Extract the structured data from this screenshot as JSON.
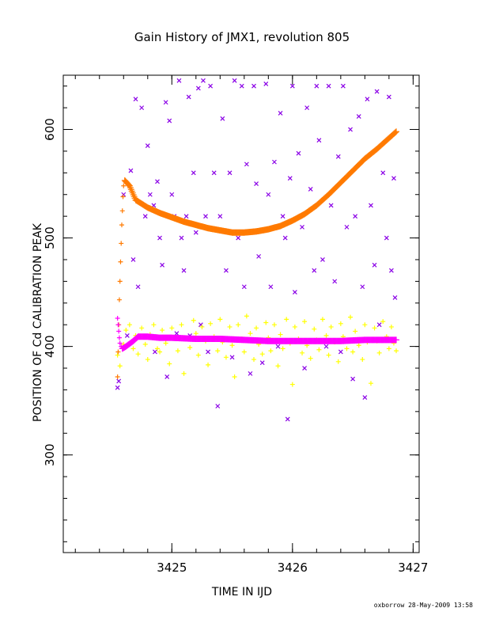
{
  "chart_data": {
    "type": "scatter",
    "title": "Gain History of JMX1, revolution 805",
    "xlabel": "TIME IN IJD",
    "ylabel": "POSITION OF Cd CALIBRATION PEAK",
    "xlim": [
      3424.1,
      3427.05
    ],
    "ylim": [
      210,
      650
    ],
    "x_ticks": [
      3425,
      3426,
      3427
    ],
    "y_ticks": [
      300,
      400,
      500,
      600
    ],
    "x_minor_step": 0.2,
    "y_minor_step": 20,
    "grid": false,
    "colors": {
      "purple": "#8a00e6",
      "yellow": "#ffff00",
      "orange": "#ff7a00",
      "magenta": "#ff00ff"
    },
    "series": [
      {
        "marker": "x",
        "color": "purple",
        "values": [
          [
            3424.55,
            362
          ],
          [
            3424.56,
            368
          ],
          [
            3424.6,
            540
          ],
          [
            3424.63,
            410
          ],
          [
            3424.66,
            562
          ],
          [
            3424.68,
            480
          ],
          [
            3424.7,
            628
          ],
          [
            3424.72,
            455
          ],
          [
            3424.75,
            620
          ],
          [
            3424.78,
            520
          ],
          [
            3424.8,
            585
          ],
          [
            3424.82,
            540
          ],
          [
            3424.85,
            530
          ],
          [
            3424.86,
            395
          ],
          [
            3424.88,
            552
          ],
          [
            3424.9,
            500
          ],
          [
            3424.92,
            475
          ],
          [
            3424.95,
            625
          ],
          [
            3424.96,
            372
          ],
          [
            3424.98,
            608
          ],
          [
            3425.0,
            540
          ],
          [
            3425.02,
            520
          ],
          [
            3425.04,
            412
          ],
          [
            3425.06,
            645
          ],
          [
            3425.08,
            500
          ],
          [
            3425.1,
            470
          ],
          [
            3425.12,
            520
          ],
          [
            3425.14,
            630
          ],
          [
            3425.15,
            410
          ],
          [
            3425.18,
            560
          ],
          [
            3425.2,
            505
          ],
          [
            3425.22,
            638
          ],
          [
            3425.24,
            420
          ],
          [
            3425.26,
            645
          ],
          [
            3425.28,
            520
          ],
          [
            3425.3,
            395
          ],
          [
            3425.32,
            640
          ],
          [
            3425.35,
            560
          ],
          [
            3425.38,
            345
          ],
          [
            3425.4,
            520
          ],
          [
            3425.42,
            610
          ],
          [
            3425.45,
            470
          ],
          [
            3425.48,
            560
          ],
          [
            3425.5,
            390
          ],
          [
            3425.52,
            645
          ],
          [
            3425.55,
            500
          ],
          [
            3425.58,
            640
          ],
          [
            3425.6,
            455
          ],
          [
            3425.62,
            568
          ],
          [
            3425.65,
            375
          ],
          [
            3425.68,
            640
          ],
          [
            3425.7,
            550
          ],
          [
            3425.72,
            483
          ],
          [
            3425.75,
            385
          ],
          [
            3425.78,
            642
          ],
          [
            3425.8,
            540
          ],
          [
            3425.82,
            455
          ],
          [
            3425.85,
            570
          ],
          [
            3425.88,
            400
          ],
          [
            3425.9,
            615
          ],
          [
            3425.92,
            520
          ],
          [
            3425.94,
            500
          ],
          [
            3425.96,
            333
          ],
          [
            3425.98,
            555
          ],
          [
            3426.0,
            640
          ],
          [
            3426.02,
            450
          ],
          [
            3426.05,
            578
          ],
          [
            3426.08,
            510
          ],
          [
            3426.1,
            380
          ],
          [
            3426.12,
            620
          ],
          [
            3426.15,
            545
          ],
          [
            3426.18,
            470
          ],
          [
            3426.2,
            640
          ],
          [
            3426.22,
            590
          ],
          [
            3426.25,
            480
          ],
          [
            3426.28,
            400
          ],
          [
            3426.3,
            640
          ],
          [
            3426.32,
            530
          ],
          [
            3426.35,
            460
          ],
          [
            3426.38,
            575
          ],
          [
            3426.4,
            395
          ],
          [
            3426.42,
            640
          ],
          [
            3426.45,
            510
          ],
          [
            3426.48,
            600
          ],
          [
            3426.5,
            370
          ],
          [
            3426.52,
            520
          ],
          [
            3426.55,
            612
          ],
          [
            3426.58,
            455
          ],
          [
            3426.6,
            353
          ],
          [
            3426.62,
            628
          ],
          [
            3426.65,
            530
          ],
          [
            3426.68,
            475
          ],
          [
            3426.7,
            635
          ],
          [
            3426.72,
            420
          ],
          [
            3426.75,
            560
          ],
          [
            3426.78,
            500
          ],
          [
            3426.8,
            630
          ],
          [
            3426.82,
            470
          ],
          [
            3426.84,
            555
          ],
          [
            3426.85,
            445
          ]
        ]
      },
      {
        "marker": "+",
        "color": "yellow",
        "values": [
          [
            3424.55,
            392
          ],
          [
            3424.57,
            382
          ],
          [
            3424.6,
            402
          ],
          [
            3424.62,
            415
          ],
          [
            3424.65,
            420
          ],
          [
            3424.68,
            398
          ],
          [
            3424.7,
            410
          ],
          [
            3424.72,
            393
          ],
          [
            3424.75,
            417
          ],
          [
            3424.78,
            402
          ],
          [
            3424.8,
            388
          ],
          [
            3424.82,
            411
          ],
          [
            3424.85,
            420
          ],
          [
            3424.88,
            398
          ],
          [
            3424.9,
            395
          ],
          [
            3424.92,
            415
          ],
          [
            3424.95,
            403
          ],
          [
            3424.98,
            384
          ],
          [
            3425.0,
            417
          ],
          [
            3425.02,
            408
          ],
          [
            3425.05,
            396
          ],
          [
            3425.08,
            420
          ],
          [
            3425.1,
            375
          ],
          [
            3425.12,
            407
          ],
          [
            3425.15,
            399
          ],
          [
            3425.18,
            424
          ],
          [
            3425.2,
            412
          ],
          [
            3425.22,
            392
          ],
          [
            3425.25,
            418
          ],
          [
            3425.28,
            405
          ],
          [
            3425.3,
            383
          ],
          [
            3425.32,
            421
          ],
          [
            3425.35,
            409
          ],
          [
            3425.38,
            396
          ],
          [
            3425.4,
            425
          ],
          [
            3425.42,
            404
          ],
          [
            3425.45,
            390
          ],
          [
            3425.48,
            418
          ],
          [
            3425.5,
            401
          ],
          [
            3425.52,
            372
          ],
          [
            3425.55,
            420
          ],
          [
            3425.58,
            407
          ],
          [
            3425.6,
            395
          ],
          [
            3425.62,
            428
          ],
          [
            3425.65,
            412
          ],
          [
            3425.68,
            388
          ],
          [
            3425.7,
            417
          ],
          [
            3425.72,
            402
          ],
          [
            3425.75,
            393
          ],
          [
            3425.78,
            422
          ],
          [
            3425.8,
            408
          ],
          [
            3425.82,
            396
          ],
          [
            3425.85,
            420
          ],
          [
            3425.88,
            382
          ],
          [
            3425.9,
            411
          ],
          [
            3425.92,
            398
          ],
          [
            3425.95,
            425
          ],
          [
            3425.98,
            403
          ],
          [
            3426.0,
            365
          ],
          [
            3426.02,
            418
          ],
          [
            3426.05,
            407
          ],
          [
            3426.08,
            394
          ],
          [
            3426.1,
            423
          ],
          [
            3426.12,
            401
          ],
          [
            3426.15,
            389
          ],
          [
            3426.18,
            416
          ],
          [
            3426.2,
            406
          ],
          [
            3426.22,
            397
          ],
          [
            3426.25,
            425
          ],
          [
            3426.28,
            410
          ],
          [
            3426.3,
            392
          ],
          [
            3426.32,
            418
          ],
          [
            3426.35,
            404
          ],
          [
            3426.38,
            386
          ],
          [
            3426.4,
            421
          ],
          [
            3426.42,
            409
          ],
          [
            3426.45,
            398
          ],
          [
            3426.48,
            427
          ],
          [
            3426.5,
            395
          ],
          [
            3426.52,
            414
          ],
          [
            3426.55,
            401
          ],
          [
            3426.58,
            388
          ],
          [
            3426.6,
            420
          ],
          [
            3426.62,
            404
          ],
          [
            3426.65,
            366
          ],
          [
            3426.68,
            417
          ],
          [
            3426.7,
            405
          ],
          [
            3426.72,
            394
          ],
          [
            3426.75,
            423
          ],
          [
            3426.78,
            409
          ],
          [
            3426.8,
            398
          ],
          [
            3426.82,
            418
          ],
          [
            3426.84,
            403
          ],
          [
            3426.86,
            396
          ]
        ]
      },
      {
        "marker": "+",
        "color": "orange",
        "values": [
          [
            3424.55,
            372
          ],
          [
            3424.555,
            395
          ],
          [
            3424.56,
            420
          ],
          [
            3424.565,
            443
          ],
          [
            3424.57,
            460
          ],
          [
            3424.575,
            478
          ],
          [
            3424.58,
            495
          ],
          [
            3424.585,
            512
          ],
          [
            3424.59,
            525
          ],
          [
            3424.595,
            538
          ],
          [
            3424.6,
            548
          ],
          [
            3424.61,
            553
          ]
        ]
      },
      {
        "marker": "+",
        "color": "orange",
        "dense": true,
        "values": [
          [
            3424.61,
            553
          ],
          [
            3424.65,
            548
          ],
          [
            3424.7,
            535
          ],
          [
            3424.8,
            528
          ],
          [
            3424.9,
            523
          ],
          [
            3425.0,
            519
          ],
          [
            3425.1,
            515
          ],
          [
            3425.2,
            512
          ],
          [
            3425.3,
            509
          ],
          [
            3425.4,
            507
          ],
          [
            3425.5,
            505
          ],
          [
            3425.6,
            505
          ],
          [
            3425.7,
            506
          ],
          [
            3425.8,
            508
          ],
          [
            3425.9,
            511
          ],
          [
            3426.0,
            516
          ],
          [
            3426.1,
            522
          ],
          [
            3426.2,
            530
          ],
          [
            3426.3,
            540
          ],
          [
            3426.4,
            551
          ],
          [
            3426.5,
            562
          ],
          [
            3426.6,
            573
          ],
          [
            3426.7,
            582
          ],
          [
            3426.8,
            592
          ],
          [
            3426.86,
            598
          ]
        ]
      },
      {
        "marker": "+",
        "color": "magenta",
        "values": [
          [
            3424.55,
            426
          ],
          [
            3424.555,
            420
          ],
          [
            3424.56,
            414
          ],
          [
            3424.565,
            408
          ],
          [
            3424.57,
            403
          ],
          [
            3424.58,
            400
          ],
          [
            3424.59,
            398
          ]
        ]
      },
      {
        "marker": "+",
        "color": "magenta",
        "dense": true,
        "values": [
          [
            3424.59,
            398
          ],
          [
            3424.62,
            400
          ],
          [
            3424.68,
            405
          ],
          [
            3424.72,
            409
          ],
          [
            3424.8,
            409
          ],
          [
            3424.9,
            408
          ],
          [
            3425.0,
            408
          ],
          [
            3425.2,
            407
          ],
          [
            3425.4,
            407
          ],
          [
            3425.6,
            406
          ],
          [
            3425.8,
            405
          ],
          [
            3426.0,
            405
          ],
          [
            3426.2,
            405
          ],
          [
            3426.4,
            405
          ],
          [
            3426.6,
            406
          ],
          [
            3426.86,
            406
          ]
        ]
      }
    ]
  },
  "footer": "oxborrow 28-May-2009 13:58"
}
